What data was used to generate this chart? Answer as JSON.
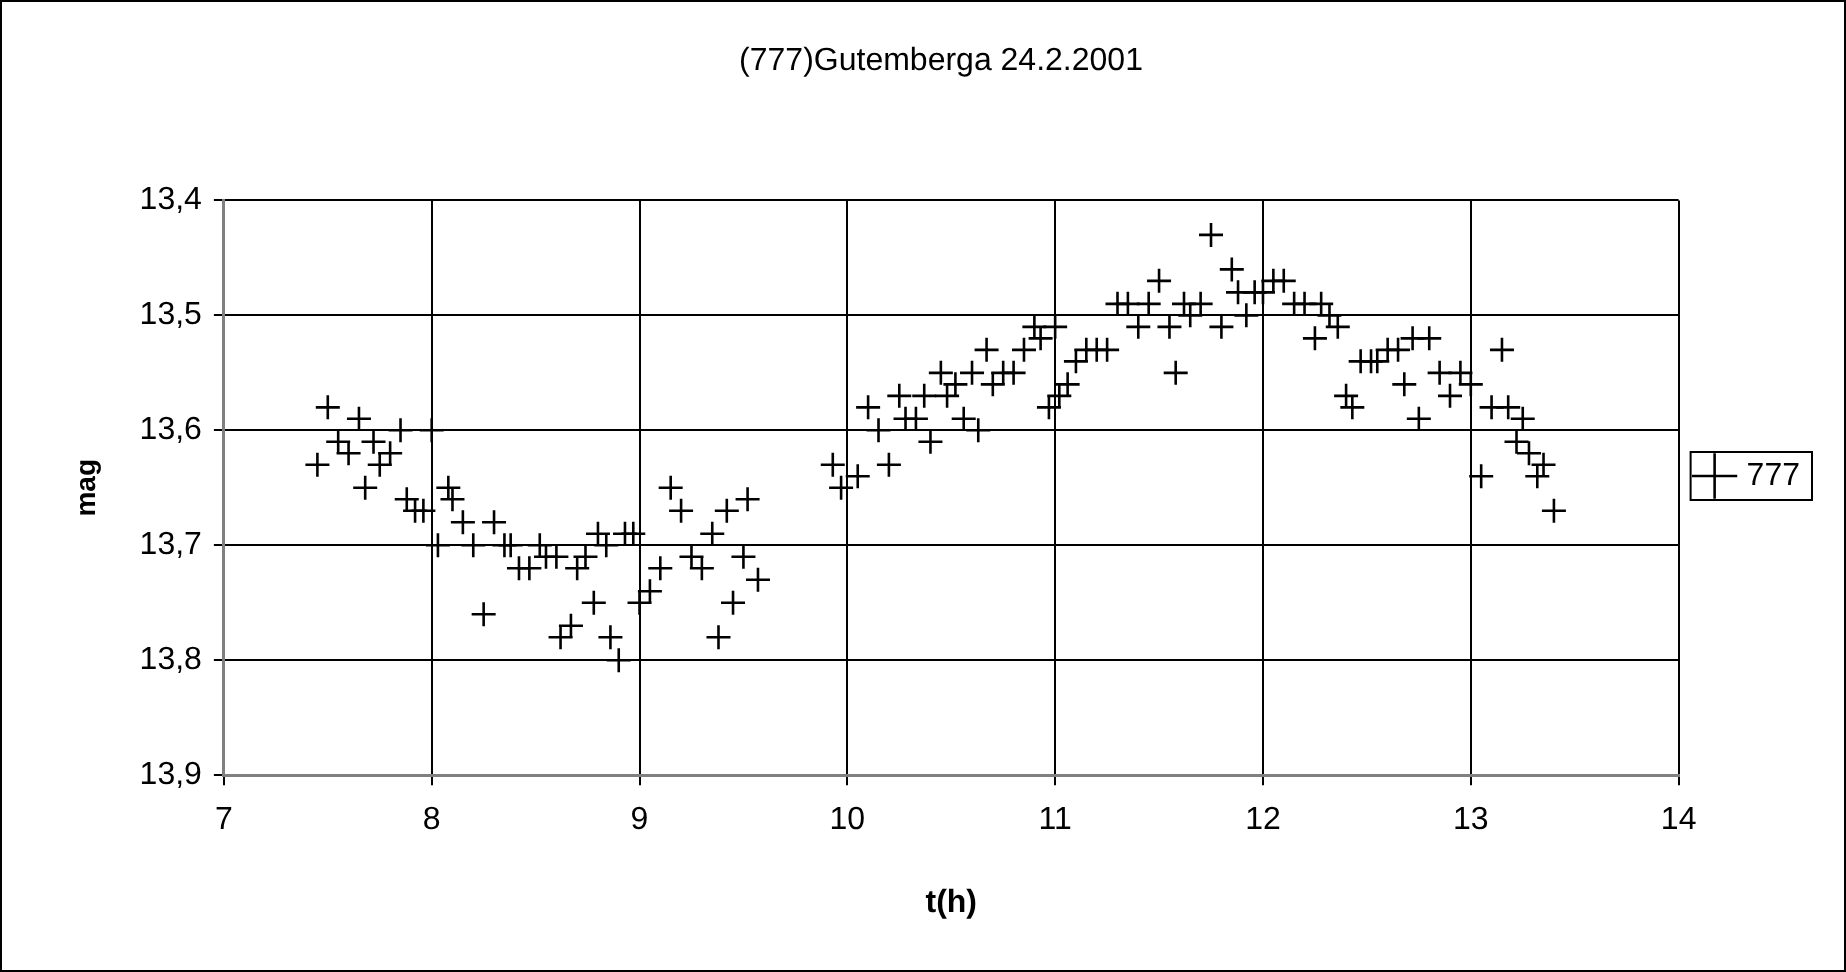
{
  "chart_data": {
    "type": "scatter",
    "title": "(777)Gutemberga 24.2.2001",
    "xlabel": "t(h)",
    "ylabel": "mag",
    "xlim": [
      7,
      14
    ],
    "xticks": [
      7,
      8,
      9,
      10,
      11,
      12,
      13,
      14
    ],
    "ylim": [
      13.9,
      13.4
    ],
    "yticks": [
      {
        "value": 13.4,
        "label": "13,4"
      },
      {
        "value": 13.5,
        "label": "13,5"
      },
      {
        "value": 13.6,
        "label": "13,6"
      },
      {
        "value": 13.7,
        "label": "13,7"
      },
      {
        "value": 13.8,
        "label": "13,8"
      },
      {
        "value": 13.9,
        "label": "13,9"
      }
    ],
    "grid": true,
    "legend": "right",
    "marker": "cross",
    "series": [
      {
        "name": "777",
        "color": "#000000",
        "x": [
          7.45,
          7.5,
          7.55,
          7.6,
          7.65,
          7.68,
          7.72,
          7.75,
          7.8,
          7.85,
          7.88,
          7.92,
          7.96,
          8.0,
          8.03,
          8.08,
          8.1,
          8.15,
          8.2,
          8.25,
          8.3,
          8.35,
          8.38,
          8.42,
          8.47,
          8.52,
          8.55,
          8.6,
          8.62,
          8.67,
          8.7,
          8.74,
          8.78,
          8.8,
          8.84,
          8.86,
          8.9,
          8.93,
          8.97,
          9.0,
          9.05,
          9.1,
          9.15,
          9.2,
          9.25,
          9.3,
          9.35,
          9.38,
          9.42,
          9.45,
          9.5,
          9.52,
          9.57,
          9.93,
          9.97,
          10.05,
          10.1,
          10.15,
          10.2,
          10.25,
          10.28,
          10.33,
          10.37,
          10.4,
          10.45,
          10.48,
          10.52,
          10.56,
          10.6,
          10.63,
          10.67,
          10.7,
          10.75,
          10.8,
          10.85,
          10.9,
          10.93,
          10.97,
          11.0,
          11.02,
          11.06,
          11.1,
          11.15,
          11.2,
          11.25,
          11.3,
          11.35,
          11.4,
          11.45,
          11.5,
          11.55,
          11.58,
          11.62,
          11.65,
          11.7,
          11.75,
          11.8,
          11.85,
          11.88,
          11.92,
          11.96,
          12.0,
          12.05,
          12.1,
          12.15,
          12.2,
          12.25,
          12.28,
          12.32,
          12.36,
          12.4,
          12.43,
          12.47,
          12.52,
          12.55,
          12.6,
          12.65,
          12.68,
          12.72,
          12.75,
          12.8,
          12.85,
          12.9,
          12.95,
          13.0,
          13.05,
          13.1,
          13.15,
          13.18,
          13.22,
          13.25,
          13.28,
          13.32,
          13.35,
          13.4
        ],
        "values": [
          13.63,
          13.58,
          13.61,
          13.62,
          13.59,
          13.65,
          13.61,
          13.63,
          13.62,
          13.6,
          13.66,
          13.67,
          13.67,
          13.6,
          13.7,
          13.65,
          13.66,
          13.68,
          13.7,
          13.76,
          13.68,
          13.7,
          13.7,
          13.72,
          13.72,
          13.7,
          13.71,
          13.71,
          13.78,
          13.77,
          13.72,
          13.71,
          13.75,
          13.69,
          13.7,
          13.78,
          13.8,
          13.69,
          13.69,
          13.75,
          13.74,
          13.72,
          13.65,
          13.67,
          13.71,
          13.72,
          13.69,
          13.78,
          13.67,
          13.75,
          13.71,
          13.66,
          13.73,
          13.63,
          13.65,
          13.64,
          13.58,
          13.6,
          13.63,
          13.57,
          13.59,
          13.59,
          13.57,
          13.61,
          13.55,
          13.57,
          13.56,
          13.59,
          13.55,
          13.6,
          13.53,
          13.56,
          13.55,
          13.55,
          13.53,
          13.51,
          13.52,
          13.58,
          13.51,
          13.57,
          13.56,
          13.54,
          13.53,
          13.53,
          13.53,
          13.49,
          13.49,
          13.51,
          13.49,
          13.47,
          13.51,
          13.55,
          13.49,
          13.5,
          13.49,
          13.43,
          13.51,
          13.46,
          13.48,
          13.5,
          13.48,
          13.48,
          13.47,
          13.47,
          13.49,
          13.49,
          13.52,
          13.49,
          13.5,
          13.51,
          13.57,
          13.58,
          13.54,
          13.54,
          13.54,
          13.53,
          13.53,
          13.56,
          13.52,
          13.59,
          13.52,
          13.55,
          13.57,
          13.55,
          13.56,
          13.64,
          13.58,
          13.53,
          13.58,
          13.61,
          13.59,
          13.62,
          13.64,
          13.63,
          13.67
        ]
      }
    ]
  }
}
